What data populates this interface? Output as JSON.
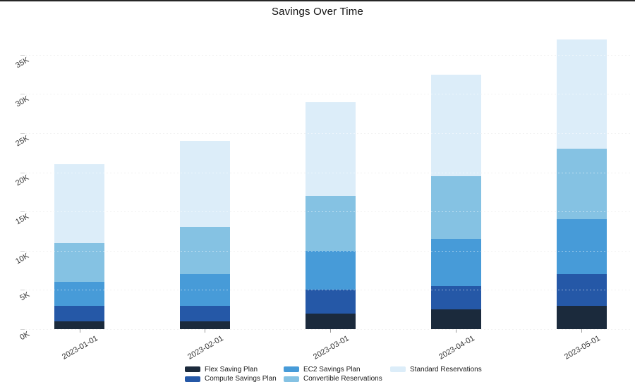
{
  "title": "Savings Over Time",
  "chart_data": {
    "type": "bar",
    "stacked": true,
    "title": "Savings Over Time",
    "categories": [
      "2023-01-01",
      "2023-02-01",
      "2023-03-01",
      "2023-04-01",
      "2023-05-01"
    ],
    "series": [
      {
        "name": "Flex Saving Plan",
        "color": "#1b2a3c",
        "values": [
          1000,
          1000,
          2000,
          2500,
          3000
        ]
      },
      {
        "name": "Compute Savings Plan",
        "color": "#2558a7",
        "values": [
          2000,
          2000,
          3000,
          3000,
          4000
        ]
      },
      {
        "name": "EC2 Savings Plan",
        "color": "#479bd8",
        "values": [
          3000,
          4000,
          5000,
          6000,
          7000
        ]
      },
      {
        "name": "Convertible Reservations",
        "color": "#85c2e3",
        "values": [
          5000,
          6000,
          7000,
          8000,
          9000
        ]
      },
      {
        "name": "Standard Reservations",
        "color": "#dcedf9",
        "values": [
          10000,
          11000,
          12000,
          13000,
          14000
        ]
      }
    ],
    "totals": [
      21000,
      24000,
      29000,
      32500,
      37000
    ],
    "y_tick_labels": [
      "0K",
      "5K",
      "10K",
      "15K",
      "20K",
      "25K",
      "30K",
      "35K"
    ],
    "y_tick_step": 5000,
    "ylim": [
      0,
      37000
    ],
    "xlabel": "",
    "ylabel": "",
    "grid": "horizontal-dotted",
    "legend_position": "bottom",
    "x_tick_angle": -30,
    "y_tick_angle": -30
  }
}
